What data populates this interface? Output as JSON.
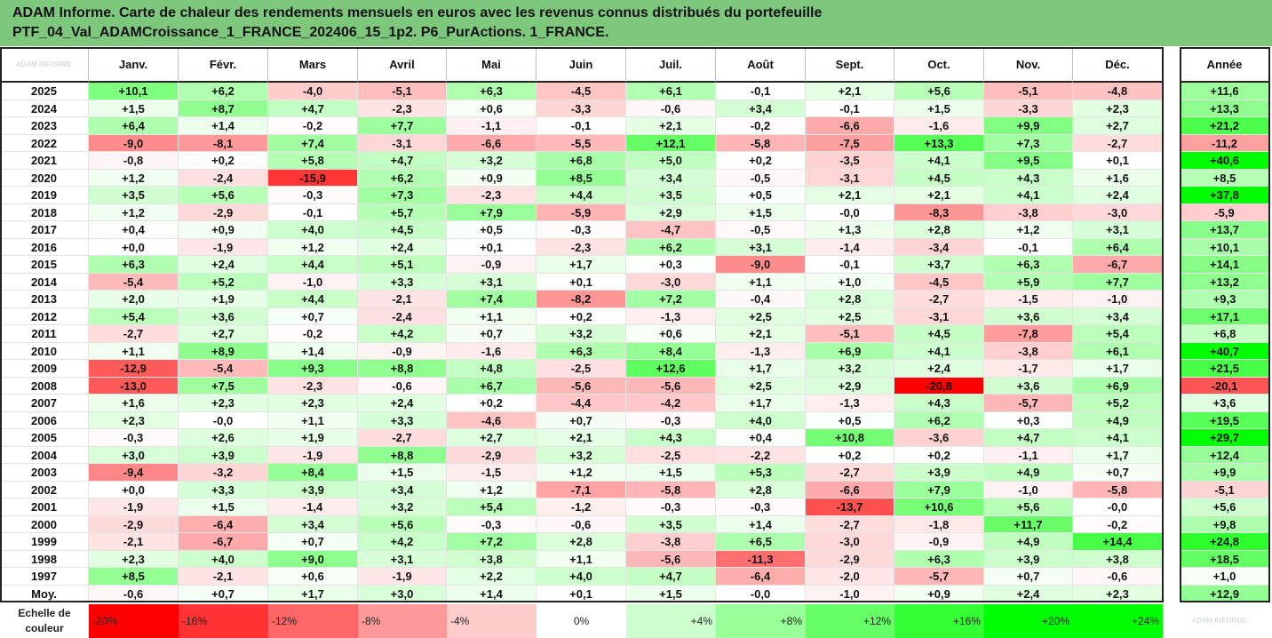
{
  "title": {
    "line1": "ADAM Informe. Carte de chaleur des rendements mensuels en euros avec les revenus connus distribués du portefeuille",
    "line2": "PTF_04_Val_ADAMCroissance_1_FRANCE_202406_15_1p2. P6_PurActions. 1_FRANCE."
  },
  "watermark": "ADAM INFORME",
  "colors": {
    "title_bg": "#7ec87e",
    "negative": "#ff0000",
    "positive": "#00ff00",
    "neutral": "#ffffff"
  },
  "chart_data": {
    "type": "heatmap",
    "columns": [
      "Janv.",
      "Févr.",
      "Mars",
      "Avril",
      "Mai",
      "Juin",
      "Juil.",
      "Août",
      "Sept.",
      "Oct.",
      "Nov.",
      "Déc."
    ],
    "year_column_label": "Année",
    "rows": [
      {
        "year": "2025",
        "values": [
          "+10,1",
          "+6,2",
          "-4,0",
          "-5,1",
          "+6,3",
          "-4,5",
          "+6,1",
          "-0,1",
          "+2,1",
          "+5,6",
          "-5,1",
          "-4,8"
        ],
        "annual": "+11,6"
      },
      {
        "year": "2024",
        "values": [
          "+1,5",
          "+8,7",
          "+4,7",
          "-2,3",
          "+0,6",
          "-3,3",
          "-0,6",
          "+3,4",
          "-0,1",
          "+1,5",
          "-3,3",
          "+2,3"
        ],
        "annual": "+13,3"
      },
      {
        "year": "2023",
        "values": [
          "+6,4",
          "+1,4",
          "-0,2",
          "+7,7",
          "-1,1",
          "-0,1",
          "+2,1",
          "-0,2",
          "-6,6",
          "-1,6",
          "+9,9",
          "+2,7"
        ],
        "annual": "+21,2"
      },
      {
        "year": "2022",
        "values": [
          "-9,0",
          "-8,1",
          "+7,4",
          "-3,1",
          "-6,6",
          "-5,5",
          "+12,1",
          "-5,8",
          "-7,5",
          "+13,3",
          "+7,3",
          "-2,7"
        ],
        "annual": "-11,2"
      },
      {
        "year": "2021",
        "values": [
          "-0,8",
          "+0,2",
          "+5,8",
          "+4,7",
          "+3,2",
          "+6,8",
          "+5,0",
          "+0,2",
          "-3,5",
          "+4,1",
          "+9,5",
          "+0,1"
        ],
        "annual": "+40,6"
      },
      {
        "year": "2020",
        "values": [
          "+1,2",
          "-2,4",
          "-15,9",
          "+6,2",
          "+0,9",
          "+8,5",
          "+3,4",
          "-0,5",
          "-3,1",
          "+4,5",
          "+4,3",
          "+1,6"
        ],
        "annual": "+8,5"
      },
      {
        "year": "2019",
        "values": [
          "+3,5",
          "+5,6",
          "-0,3",
          "+7,3",
          "-2,3",
          "+4,4",
          "+3,5",
          "+0,5",
          "+2,1",
          "+2,1",
          "+4,1",
          "+2,4"
        ],
        "annual": "+37,8"
      },
      {
        "year": "2018",
        "values": [
          "+1,2",
          "-2,9",
          "-0,1",
          "+5,7",
          "+7,9",
          "-5,9",
          "+2,9",
          "+1,5",
          "-0,0",
          "-8,3",
          "-3,8",
          "-3,0"
        ],
        "annual": "-5,9"
      },
      {
        "year": "2017",
        "values": [
          "+0,4",
          "+0,9",
          "+4,0",
          "+4,5",
          "+0,5",
          "-0,3",
          "-4,7",
          "-0,5",
          "+1,3",
          "+2,8",
          "+1,2",
          "+3,1"
        ],
        "annual": "+13,7"
      },
      {
        "year": "2016",
        "values": [
          "+0,0",
          "-1,9",
          "+1,2",
          "+2,4",
          "+0,1",
          "-2,3",
          "+6,2",
          "+3,1",
          "-1,4",
          "-3,4",
          "-0,1",
          "+6,4"
        ],
        "annual": "+10,1"
      },
      {
        "year": "2015",
        "values": [
          "+6,3",
          "+2,4",
          "+4,4",
          "+5,1",
          "-0,9",
          "+1,7",
          "+0,3",
          "-9,0",
          "-0,1",
          "+3,7",
          "+6,3",
          "-6,7"
        ],
        "annual": "+14,1"
      },
      {
        "year": "2014",
        "values": [
          "-5,4",
          "+5,2",
          "-1,0",
          "+3,3",
          "+3,1",
          "+0,1",
          "-3,0",
          "+1,1",
          "+1,0",
          "-4,5",
          "+5,9",
          "+7,7"
        ],
        "annual": "+13,2"
      },
      {
        "year": "2013",
        "values": [
          "+2,0",
          "+1,9",
          "+4,4",
          "-2,1",
          "+7,4",
          "-8,2",
          "+7,2",
          "-0,4",
          "+2,8",
          "-2,7",
          "-1,5",
          "-1,0"
        ],
        "annual": "+9,3"
      },
      {
        "year": "2012",
        "values": [
          "+5,4",
          "+3,6",
          "+0,7",
          "-2,4",
          "+1,1",
          "+0,2",
          "-1,3",
          "+2,5",
          "+2,5",
          "-3,1",
          "+3,6",
          "+3,4"
        ],
        "annual": "+17,1"
      },
      {
        "year": "2011",
        "values": [
          "-2,7",
          "+2,7",
          "-0,2",
          "+4,2",
          "+0,7",
          "+3,2",
          "+0,6",
          "+2,1",
          "-5,1",
          "+4,5",
          "-7,8",
          "+5,4"
        ],
        "annual": "+6,8"
      },
      {
        "year": "2010",
        "values": [
          "+1,1",
          "+8,9",
          "+1,4",
          "-0,9",
          "-1,6",
          "+6,3",
          "+8,4",
          "-1,3",
          "+6,9",
          "+4,1",
          "-3,8",
          "+6,1"
        ],
        "annual": "+40,7"
      },
      {
        "year": "2009",
        "values": [
          "-12,9",
          "-5,4",
          "+9,3",
          "+8,8",
          "+4,8",
          "-2,5",
          "+12,6",
          "+1,7",
          "+3,2",
          "+2,4",
          "-1,7",
          "+1,7"
        ],
        "annual": "+21,5"
      },
      {
        "year": "2008",
        "values": [
          "-13,0",
          "+7,5",
          "-2,3",
          "-0,6",
          "+6,7",
          "-5,6",
          "-5,6",
          "+2,5",
          "+2,9",
          "-20,8",
          "+3,6",
          "+6,9"
        ],
        "annual": "-20,1"
      },
      {
        "year": "2007",
        "values": [
          "+1,6",
          "+2,3",
          "+2,3",
          "+2,4",
          "+0,2",
          "-4,4",
          "-4,2",
          "+1,7",
          "-1,3",
          "+4,3",
          "-5,7",
          "+5,2"
        ],
        "annual": "+3,6"
      },
      {
        "year": "2006",
        "values": [
          "+2,3",
          "-0,0",
          "+1,1",
          "+3,3",
          "-4,6",
          "+0,7",
          "-0,3",
          "+4,0",
          "+0,5",
          "+6,2",
          "+0,3",
          "+4,9"
        ],
        "annual": "+19,5"
      },
      {
        "year": "2005",
        "values": [
          "-0,3",
          "+2,6",
          "+1,9",
          "-2,7",
          "+2,7",
          "+2,1",
          "+4,3",
          "+0,4",
          "+10,8",
          "-3,6",
          "+4,7",
          "+4,1"
        ],
        "annual": "+29,7"
      },
      {
        "year": "2004",
        "values": [
          "+3,0",
          "+3,9",
          "-1,9",
          "+8,8",
          "-2,9",
          "+3,2",
          "-2,5",
          "-2,2",
          "+0,2",
          "+0,2",
          "-1,1",
          "+1,7"
        ],
        "annual": "+12,4"
      },
      {
        "year": "2003",
        "values": [
          "-9,4",
          "-3,2",
          "+8,4",
          "+1,5",
          "-1,5",
          "+1,2",
          "+1,5",
          "+5,3",
          "-2,7",
          "+3,9",
          "+4,9",
          "+0,7"
        ],
        "annual": "+9,9"
      },
      {
        "year": "2002",
        "values": [
          "+0,0",
          "+3,3",
          "+3,9",
          "+3,4",
          "+1,2",
          "-7,1",
          "-5,8",
          "+2,8",
          "-6,6",
          "+7,9",
          "-1,0",
          "-5,8"
        ],
        "annual": "-5,1"
      },
      {
        "year": "2001",
        "values": [
          "-1,9",
          "+1,5",
          "-1,4",
          "+3,2",
          "+5,4",
          "-1,2",
          "-0,3",
          "-0,3",
          "-13,7",
          "+10,6",
          "+5,6",
          "-0,0"
        ],
        "annual": "+5,6"
      },
      {
        "year": "2000",
        "values": [
          "-2,9",
          "-6,4",
          "+3,4",
          "+5,6",
          "-0,3",
          "-0,6",
          "+3,5",
          "+1,4",
          "-2,7",
          "-1,8",
          "+11,7",
          "-0,2"
        ],
        "annual": "+9,8"
      },
      {
        "year": "1999",
        "values": [
          "-2,1",
          "-6,7",
          "+0,7",
          "+4,2",
          "+7,2",
          "+2,8",
          "-3,8",
          "+6,5",
          "-3,0",
          "-0,9",
          "+4,9",
          "+14,4"
        ],
        "annual": "+24,8"
      },
      {
        "year": "1998",
        "values": [
          "+2,3",
          "+4,0",
          "+9,0",
          "+3,1",
          "+3,8",
          "+1,1",
          "-5,6",
          "-11,3",
          "-2,9",
          "+6,3",
          "+3,9",
          "+3,8"
        ],
        "annual": "+18,5"
      },
      {
        "year": "1997",
        "values": [
          "+8,5",
          "-2,1",
          "+0,6",
          "-1,9",
          "+2,2",
          "+4,0",
          "+4,7",
          "-6,4",
          "-2,0",
          "-5,7",
          "+0,7",
          "-0,6"
        ],
        "annual": "+1,0"
      }
    ],
    "average_row": {
      "label": "Moy.",
      "values": [
        "-0,6",
        "+0,7",
        "+1,7",
        "+3,0",
        "+1,4",
        "+0,1",
        "+1,5",
        "-0,0",
        "-1,0",
        "+0,9",
        "+2,4",
        "+2,3"
      ],
      "annual": "+12,9"
    },
    "color_scale": {
      "label": "Echelle de couleur",
      "stops": [
        "-20%",
        "-16%",
        "-12%",
        "-8%",
        "-4%",
        "0%",
        "+4%",
        "+8%",
        "+12%",
        "+16%",
        "+20%",
        "+24%"
      ],
      "stop_values": [
        -20,
        -16,
        -12,
        -8,
        -4,
        0,
        4,
        8,
        12,
        16,
        20,
        24
      ]
    }
  }
}
